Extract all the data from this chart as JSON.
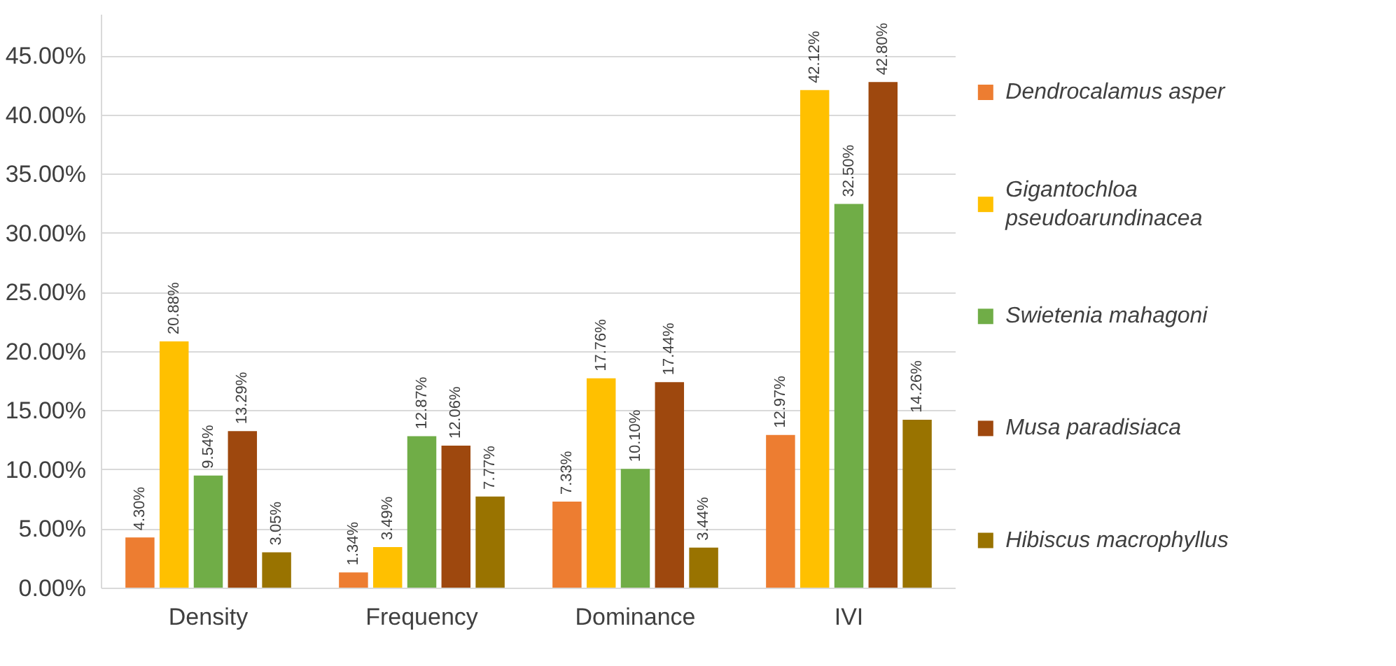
{
  "chart_data": {
    "type": "bar",
    "categories": [
      "Density",
      "Frequency",
      "Dominance",
      "IVI"
    ],
    "ylim": [
      0,
      48.5
    ],
    "yticks": [
      {
        "value": 0,
        "label": "0.00%"
      },
      {
        "value": 5,
        "label": "5.00%"
      },
      {
        "value": 10,
        "label": "10.00%"
      },
      {
        "value": 15,
        "label": "15.00%"
      },
      {
        "value": 20,
        "label": "20.00%"
      },
      {
        "value": 25,
        "label": "25.00%"
      },
      {
        "value": 30,
        "label": "30.00%"
      },
      {
        "value": 35,
        "label": "35.00%"
      },
      {
        "value": 40,
        "label": "40.00%"
      },
      {
        "value": 45,
        "label": "45.00%"
      }
    ],
    "grid": "y",
    "legend": "right",
    "series": [
      {
        "name": "Dendrocalamus asper",
        "color": "#ed7d31",
        "values": [
          4.3,
          1.34,
          7.33,
          12.97
        ],
        "value_labels": [
          "4.30%",
          "1.34%",
          "7.33%",
          "12.97%"
        ]
      },
      {
        "name": "Gigantochloa pseudoarundinacea",
        "color": "#ffc000",
        "values": [
          20.88,
          3.49,
          17.76,
          42.12
        ],
        "value_labels": [
          "20.88%",
          "3.49%",
          "17.76%",
          "42.12%"
        ]
      },
      {
        "name": "Swietenia mahagoni",
        "color": "#70ad47",
        "values": [
          9.54,
          12.87,
          10.1,
          32.5
        ],
        "value_labels": [
          "9.54%",
          "12.87%",
          "10.10%",
          "32.50%"
        ]
      },
      {
        "name": "Musa paradisiaca",
        "color": "#9e480e",
        "values": [
          13.29,
          12.06,
          17.44,
          42.8
        ],
        "value_labels": [
          "13.29%",
          "12.06%",
          "17.44%",
          "42.80%"
        ]
      },
      {
        "name": "Hibiscus macrophyllus",
        "color": "#997300",
        "values": [
          3.05,
          7.77,
          3.44,
          14.26
        ],
        "value_labels": [
          "3.05%",
          "7.77%",
          "3.44%",
          "14.26%"
        ]
      }
    ]
  }
}
